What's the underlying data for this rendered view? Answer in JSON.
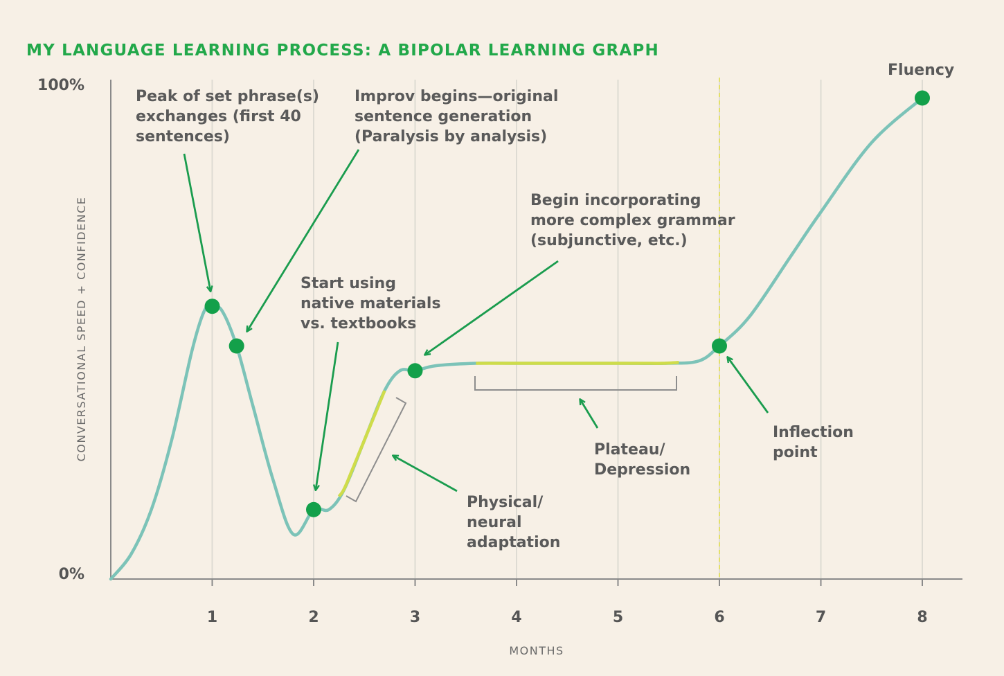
{
  "chart_data": {
    "type": "line",
    "title": "MY LANGUAGE LEARNING PROCESS: A BIPOLAR LEARNING GRAPH",
    "xlabel": "MONTHS",
    "ylabel": "CONVERSATIONAL SPEED + CONFIDENCE",
    "x_ticks": [
      "1",
      "2",
      "3",
      "4",
      "5",
      "6",
      "7",
      "8"
    ],
    "y_ticks": [
      "0%",
      "100%"
    ],
    "xlim": [
      0,
      8.2
    ],
    "ylim": [
      0,
      100
    ],
    "grid": true,
    "series": [
      {
        "x": [
          0,
          0.2,
          0.4,
          0.6,
          0.8,
          0.92,
          1.0,
          1.1,
          1.24,
          1.4,
          1.6,
          1.8,
          2.0,
          2.15,
          2.3,
          2.5,
          2.7,
          2.85,
          3.0,
          3.2,
          3.6,
          4.0,
          4.5,
          5.0,
          5.5,
          5.8,
          6.0,
          6.3,
          6.7,
          7.0,
          7.5,
          8.0
        ],
        "y": [
          0,
          5,
          14,
          28,
          46,
          54,
          55,
          54,
          47,
          35,
          20,
          9,
          14,
          14,
          18,
          28,
          38,
          42,
          42,
          43,
          43.5,
          43.5,
          43.5,
          43.5,
          43.5,
          44,
          47,
          53,
          65,
          74,
          88,
          97
        ]
      }
    ],
    "points": [
      {
        "x": 1.0,
        "y": 55
      },
      {
        "x": 1.24,
        "y": 47
      },
      {
        "x": 2.0,
        "y": 14
      },
      {
        "x": 3.0,
        "y": 42
      },
      {
        "x": 6.0,
        "y": 47
      },
      {
        "x": 8.0,
        "y": 97
      }
    ],
    "highlight_segments": [
      {
        "from": 2.25,
        "to": 2.7
      },
      {
        "from": 3.6,
        "to": 5.6
      }
    ],
    "inflection_x": 6,
    "annotations": [
      {
        "lines": [
          "Peak of set phrase(s)",
          "exchanges (first 40",
          "sentences)"
        ]
      },
      {
        "lines": [
          "Improv begins—original",
          "sentence generation",
          "(Paralysis by analysis)"
        ]
      },
      {
        "lines": [
          "Start using",
          "native materials",
          "vs. textbooks"
        ]
      },
      {
        "lines": [
          "Begin incorporating",
          "more complex grammar",
          "(subjunctive, etc.)"
        ]
      },
      {
        "lines": [
          "Physical/",
          "neural",
          "adaptation"
        ]
      },
      {
        "lines": [
          "Plateau/",
          "Depression"
        ]
      },
      {
        "lines": [
          "Inflection",
          "point"
        ]
      },
      {
        "lines": [
          "Fluency"
        ]
      }
    ],
    "colors": {
      "curve": "#7cc3b8",
      "highlight": "#cfdc4a",
      "dot": "#13a04a",
      "arrow": "#1a9c4e",
      "title": "#22a84a",
      "axis": "#8a8a8a",
      "grid": "#dedbd3",
      "inflection_line": "#e3e06a"
    }
  }
}
